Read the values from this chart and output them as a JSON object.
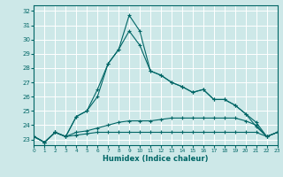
{
  "xlabel": "Humidex (Indice chaleur)",
  "bg_color": "#cde8e8",
  "grid_color": "#ffffff",
  "line_color": "#006666",
  "xlim": [
    0,
    23
  ],
  "ylim": [
    22.6,
    32.4
  ],
  "yticks": [
    23,
    24,
    25,
    26,
    27,
    28,
    29,
    30,
    31,
    32
  ],
  "xticks": [
    0,
    1,
    2,
    3,
    4,
    5,
    6,
    7,
    8,
    9,
    10,
    11,
    12,
    13,
    14,
    15,
    16,
    17,
    18,
    19,
    20,
    21,
    22,
    23
  ],
  "series": [
    [
      23.2,
      22.8,
      23.5,
      23.2,
      23.3,
      23.4,
      23.5,
      23.5,
      23.5,
      23.5,
      23.5,
      23.5,
      23.5,
      23.5,
      23.5,
      23.5,
      23.5,
      23.5,
      23.5,
      23.5,
      23.5,
      23.5,
      23.2,
      23.5
    ],
    [
      23.2,
      22.8,
      23.5,
      23.2,
      23.5,
      23.6,
      23.8,
      24.0,
      24.2,
      24.3,
      24.3,
      24.3,
      24.4,
      24.5,
      24.5,
      24.5,
      24.5,
      24.5,
      24.5,
      24.5,
      24.3,
      24.0,
      23.2,
      23.5
    ],
    [
      23.2,
      22.8,
      23.5,
      23.2,
      24.6,
      25.0,
      26.0,
      28.3,
      29.3,
      30.6,
      29.6,
      27.8,
      27.5,
      27.0,
      26.7,
      26.3,
      26.5,
      25.8,
      25.8,
      25.4,
      24.8,
      24.2,
      23.2,
      23.5
    ],
    [
      23.2,
      22.8,
      23.5,
      23.2,
      24.6,
      25.0,
      26.5,
      28.3,
      29.3,
      31.7,
      30.6,
      27.8,
      27.5,
      27.0,
      26.7,
      26.3,
      26.5,
      25.8,
      25.8,
      25.4,
      24.8,
      23.9,
      23.2,
      23.5
    ]
  ]
}
